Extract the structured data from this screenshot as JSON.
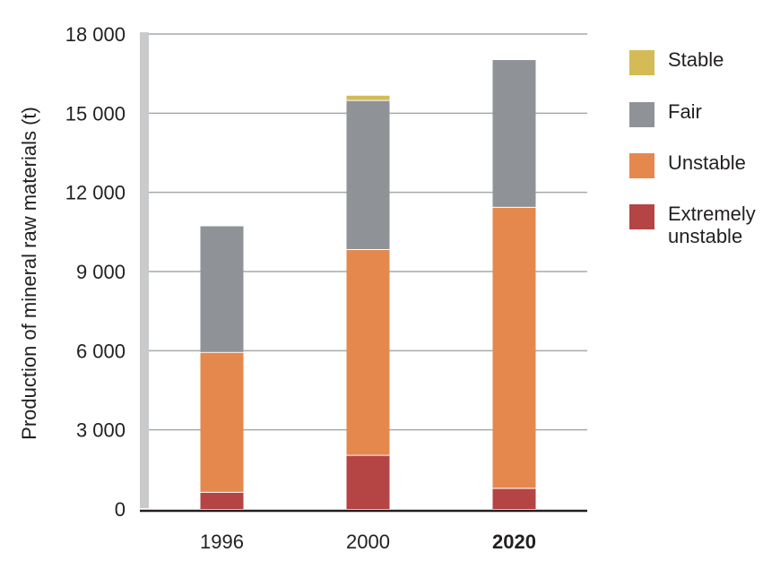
{
  "chart_data": {
    "type": "bar",
    "stacked": true,
    "ylabel": "Production of mineral raw materials (t)",
    "xlabel": "",
    "categories": [
      "1996",
      "2000",
      "2020"
    ],
    "category_bold": [
      false,
      false,
      true
    ],
    "ylim": [
      0,
      18000
    ],
    "yticks": [
      0,
      3000,
      6000,
      9000,
      12000,
      15000,
      18000
    ],
    "ytick_labels": [
      "0",
      "3 000",
      "6 000",
      "9 000",
      "12 000",
      "15 000",
      "18 000"
    ],
    "grid": true,
    "legend_position": "right",
    "series": [
      {
        "name": "Extremely unstable",
        "color": "#b54445",
        "values": [
          650,
          2050,
          800
        ]
      },
      {
        "name": "Unstable",
        "color": "#e5884e",
        "values": [
          5300,
          7800,
          10650
        ]
      },
      {
        "name": "Fair",
        "color": "#8f9397",
        "values": [
          4800,
          5650,
          5600
        ]
      },
      {
        "name": "Stable",
        "color": "#d4bb55",
        "values": [
          0,
          200,
          0
        ]
      }
    ]
  },
  "legend": [
    {
      "label_lines": [
        "Stable"
      ],
      "color": "#d4bb55"
    },
    {
      "label_lines": [
        "Fair"
      ],
      "color": "#8f9397"
    },
    {
      "label_lines": [
        "Unstable"
      ],
      "color": "#e5884e"
    },
    {
      "label_lines": [
        "Extremely",
        "unstable"
      ],
      "color": "#b54445"
    }
  ]
}
